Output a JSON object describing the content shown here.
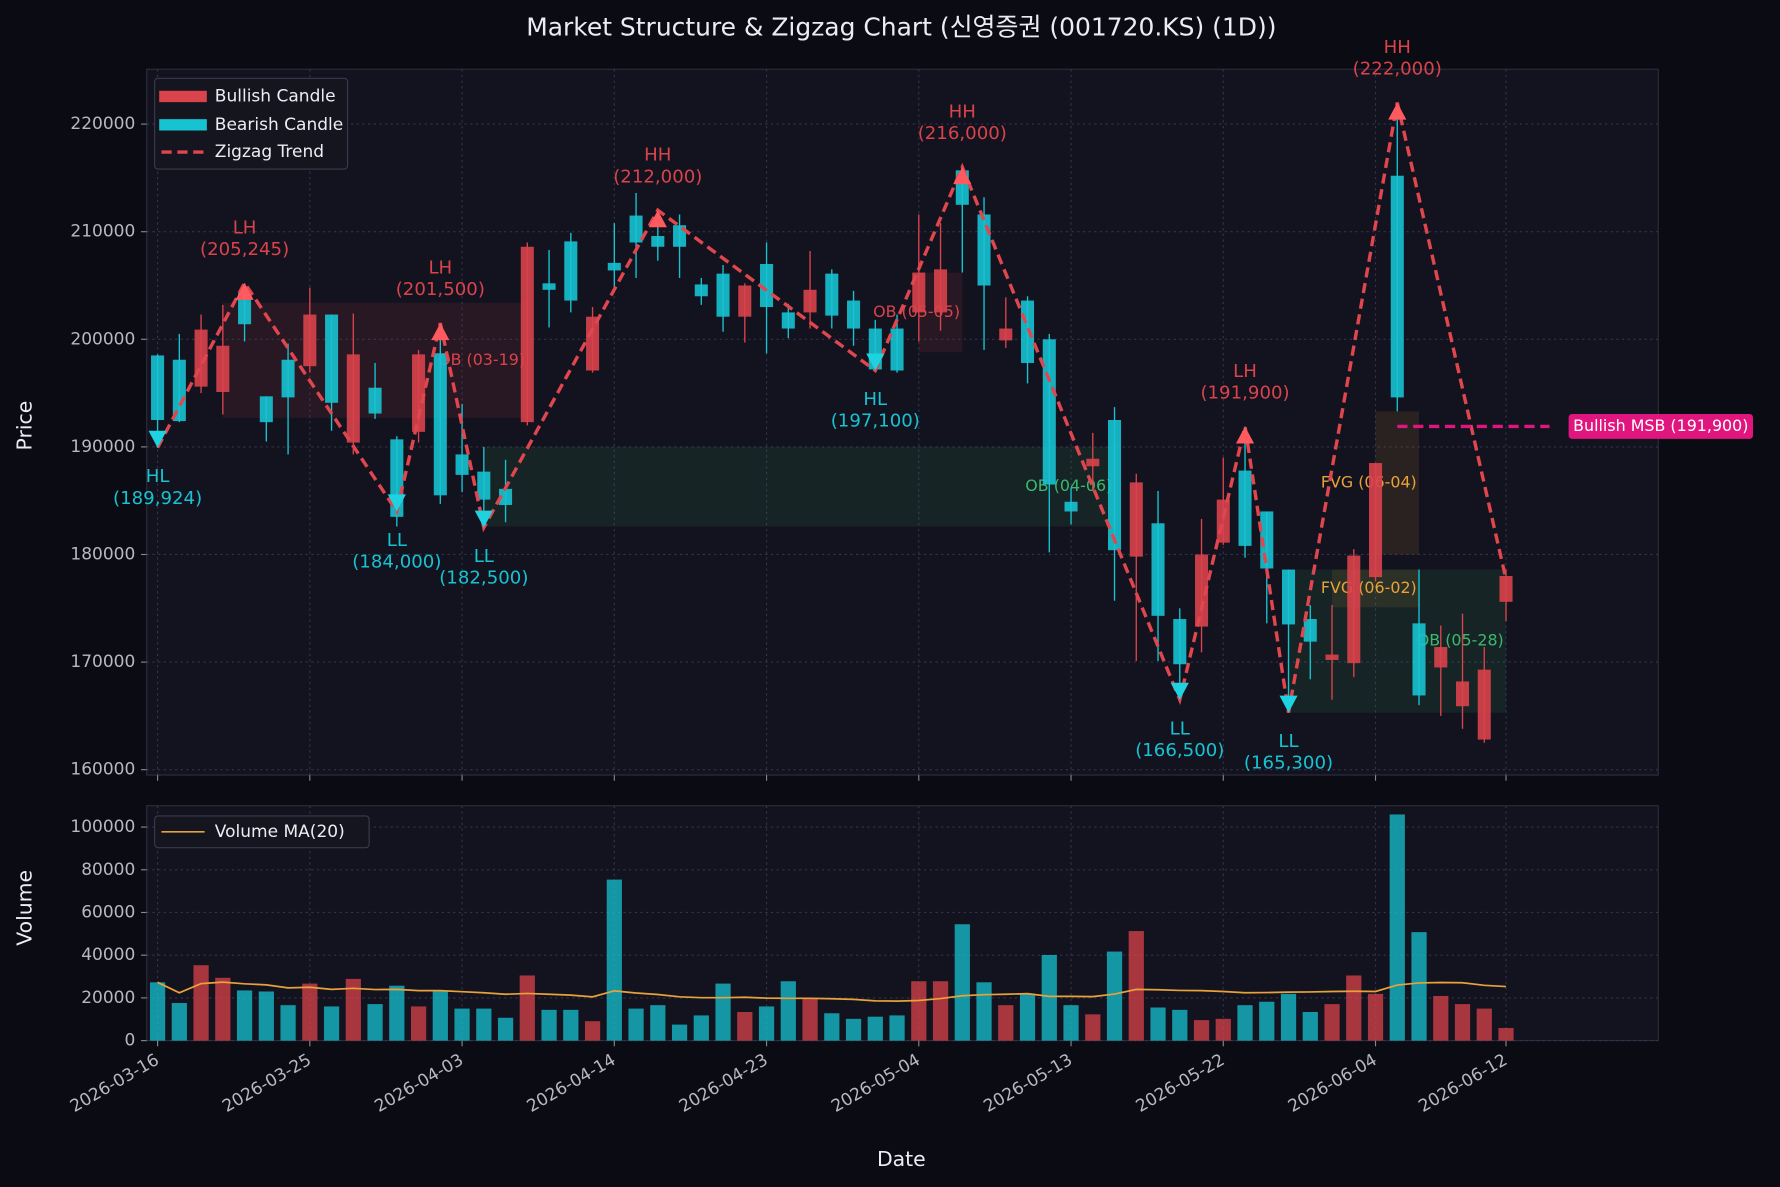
{
  "chart_data": [
    {
      "type": "candlestick",
      "title": "Market Structure & Zigzag Chart (신영증권 (001720.KS) (1D))",
      "ylabel": "Price",
      "open": [
        198500,
        198100,
        195600,
        195100,
        204300,
        194700,
        198100,
        197500,
        202300,
        190400,
        195500,
        190700,
        191400,
        198700,
        189300,
        187700,
        186100,
        192300,
        205200,
        209100,
        197100,
        207100,
        211500,
        209600,
        210600,
        205100,
        206100,
        202100,
        207000,
        202500,
        202500,
        206100,
        203600,
        201000,
        201000,
        202500,
        202500,
        215700,
        211600,
        199900,
        203600,
        200000,
        184900,
        188200,
        192500,
        179800,
        182900,
        174000,
        173300,
        181100,
        187800,
        184000,
        178600,
        174000,
        170200,
        169900,
        177900,
        215200,
        173600,
        169500,
        165900,
        162800,
        175600
      ],
      "high": [
        198600,
        200500,
        202300,
        203200,
        205200,
        194700,
        199600,
        204800,
        202300,
        202400,
        197800,
        191000,
        199000,
        201500,
        194000,
        190000,
        188800,
        209000,
        208300,
        209900,
        203000,
        210800,
        213600,
        211600,
        211600,
        205700,
        206900,
        205200,
        209000,
        203300,
        208200,
        206500,
        204500,
        201800,
        202300,
        211600,
        210800,
        216000,
        213200,
        203900,
        204000,
        200500,
        186200,
        191300,
        193700,
        187500,
        185900,
        175000,
        183300,
        189000,
        191900,
        184000,
        178600,
        175300,
        175300,
        180500,
        188500,
        222000,
        178600,
        173400,
        174500,
        171400,
        178600
      ],
      "low": [
        189900,
        192300,
        195000,
        193000,
        199800,
        190500,
        189300,
        196900,
        191500,
        189300,
        192600,
        182600,
        190400,
        184700,
        185800,
        182500,
        183000,
        192000,
        201100,
        202500,
        196900,
        204800,
        205700,
        207300,
        205700,
        203200,
        200700,
        199700,
        198700,
        200100,
        201000,
        201000,
        199400,
        197100,
        196900,
        199800,
        200800,
        206200,
        199000,
        199200,
        195900,
        180200,
        182800,
        186000,
        175700,
        170100,
        170100,
        166500,
        170900,
        180900,
        179700,
        173600,
        165300,
        168400,
        166500,
        168600,
        177500,
        193300,
        166000,
        165000,
        163800,
        162500,
        173800
      ],
      "close": [
        192500,
        192400,
        200900,
        199400,
        201400,
        192300,
        194600,
        202300,
        194100,
        198600,
        193100,
        183500,
        198600,
        185500,
        187400,
        185100,
        184600,
        208600,
        204600,
        203600,
        202100,
        206400,
        209000,
        208600,
        208600,
        204000,
        202100,
        205000,
        203000,
        201000,
        204600,
        202200,
        201000,
        197200,
        197100,
        206200,
        206500,
        212500,
        205000,
        201000,
        197800,
        186500,
        184000,
        188900,
        180400,
        186700,
        174300,
        169800,
        180000,
        185100,
        180800,
        178700,
        173500,
        171900,
        170700,
        179900,
        188500,
        194600,
        166900,
        171400,
        168200,
        169300,
        178000
      ],
      "xlim": [
        -0.5,
        69
      ],
      "ylim": [
        159500,
        225100
      ],
      "yticks": [
        160000,
        170000,
        180000,
        190000,
        200000,
        210000,
        220000
      ],
      "grid": true,
      "legend": "upper left",
      "up": {
        "name": "Bullish Candle",
        "color": "#d9434b"
      },
      "down": {
        "name": "Bearish Candle",
        "color": "#17c3d1"
      },
      "zigzag": {
        "name": "Zigzag Trend",
        "color": "#e0464e",
        "x": [
          0,
          4,
          11,
          13,
          15,
          23,
          33,
          37,
          47,
          50,
          52,
          57,
          62
        ],
        "values": [
          189924,
          205245,
          184000,
          201500,
          182500,
          212000,
          197100,
          216000,
          166500,
          191900,
          165300,
          222000,
          177700
        ],
        "labels": [
          "HL",
          "LH",
          "LL",
          "LH",
          "LL",
          "HH",
          "HL",
          "HH",
          "LL",
          "LH",
          "LL",
          "HH",
          null
        ],
        "value_labels": [
          "(189,924)",
          "(205,245)",
          "(184,000)",
          "(201,500)",
          "(182,500)",
          "(212,000)",
          "(197,100)",
          "(216,000)",
          "(166,500)",
          "(191,900)",
          "(165,300)",
          "(222,000)",
          null
        ]
      },
      "zones": [
        {
          "label": "OB (03-19)",
          "x": [
            3,
            17
          ],
          "range": [
            192700,
            203400
          ],
          "color": "#d9434b"
        },
        {
          "label": "OB (04-06)",
          "x": [
            15,
            44
          ],
          "range": [
            182600,
            190000
          ],
          "color": "#3cb86e"
        },
        {
          "label": "OB (05-05)",
          "x": [
            35,
            37
          ],
          "range": [
            198800,
            206200
          ],
          "color": "#d9434b"
        },
        {
          "label": "OB (05-28)",
          "x": [
            52,
            62
          ],
          "range": [
            165300,
            178600
          ],
          "color": "#3cb86e"
        },
        {
          "label": "FVG (06-02)",
          "x": [
            54,
            58
          ],
          "range": [
            175100,
            178600
          ],
          "color": "#e8a23a"
        },
        {
          "label": "FVG (06-04)",
          "x": [
            56,
            58
          ],
          "range": [
            180000,
            193300
          ],
          "color": "#e8a23a"
        }
      ],
      "msb": {
        "label": "Bullish MSB (191,900)",
        "value": 191900,
        "x": [
          57,
          64
        ],
        "color": "#e0157d"
      }
    },
    {
      "type": "bar",
      "ylabel": "Volume",
      "xlabel": "Date",
      "categories": [
        "2026-03-16",
        null,
        null,
        null,
        null,
        null,
        null,
        "2026-03-25",
        null,
        null,
        null,
        null,
        null,
        null,
        "2026-04-03",
        null,
        null,
        null,
        null,
        null,
        null,
        "2026-04-14",
        null,
        null,
        null,
        null,
        null,
        null,
        "2026-04-23",
        null,
        null,
        null,
        null,
        null,
        null,
        "2026-05-04",
        null,
        null,
        null,
        null,
        null,
        null,
        "2026-05-13",
        null,
        null,
        null,
        null,
        null,
        null,
        "2026-05-22",
        null,
        null,
        null,
        null,
        null,
        null,
        "2026-06-04",
        null,
        null,
        null,
        null,
        null,
        "2026-06-12"
      ],
      "values": [
        27300,
        17600,
        35300,
        29400,
        23500,
        23000,
        16600,
        26700,
        16000,
        28900,
        17100,
        25700,
        16000,
        23500,
        15000,
        15000,
        10700,
        30500,
        14400,
        14400,
        9100,
        75400,
        15000,
        16600,
        7500,
        11800,
        26700,
        13400,
        16000,
        27800,
        19800,
        12800,
        10200,
        11200,
        11800,
        27800,
        27800,
        54500,
        27300,
        16600,
        21900,
        40100,
        16600,
        12300,
        41700,
        51300,
        15500,
        14400,
        9600,
        10200,
        16600,
        18200,
        21900,
        13400,
        17100,
        30500,
        21900,
        105900,
        50800,
        20900,
        17100,
        15000,
        5900
      ],
      "xlim": [
        -0.5,
        69
      ],
      "ylim": [
        0,
        110000
      ],
      "yticks": [
        0,
        20000,
        40000,
        60000,
        80000,
        100000
      ],
      "grid": true,
      "legend": "upper left",
      "ma": {
        "name": "Volume MA(20)",
        "color": "#e8a23a",
        "values": [
          27300,
          22400,
          26700,
          27400,
          26600,
          26100,
          24700,
          25000,
          24000,
          24500,
          23900,
          24000,
          23400,
          23400,
          22900,
          22400,
          21700,
          22100,
          21700,
          21300,
          20500,
          23300,
          22300,
          21600,
          20500,
          20100,
          20100,
          20300,
          19900,
          19800,
          19800,
          19600,
          19300,
          18600,
          18500,
          18800,
          19700,
          21000,
          21500,
          21700,
          22000,
          20700,
          20700,
          20600,
          21800,
          24000,
          23800,
          23500,
          23400,
          23000,
          22400,
          22500,
          22700,
          22800,
          23000,
          23100,
          23000,
          26000,
          27000,
          27200,
          27100,
          25900,
          25300
        ]
      }
    }
  ]
}
